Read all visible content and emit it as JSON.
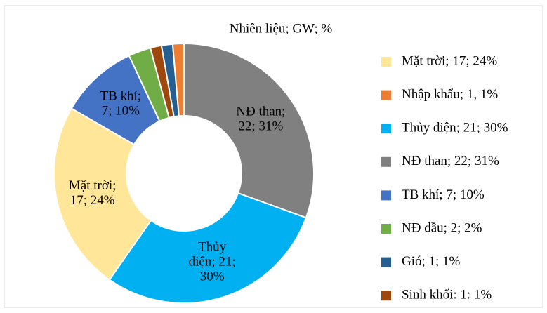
{
  "chart_data": {
    "type": "donut",
    "title": "Nhiên liệu; GW; %",
    "categories": [
      "Mặt trời",
      "Nhập khẩu",
      "Thủy điện",
      "NĐ than",
      "TB khí",
      "NĐ dầu",
      "Gió",
      "Sinh khối"
    ],
    "values": [
      17,
      1,
      21,
      22,
      7,
      2,
      1,
      1
    ],
    "percents": [
      24,
      1,
      30,
      31,
      10,
      2,
      1,
      1
    ],
    "colors": [
      "#ffe699",
      "#ed7d31",
      "#00b0f0",
      "#808080",
      "#4472c4",
      "#70ad47",
      "#255e91",
      "#9e480e"
    ],
    "legend_labels": [
      "Mặt trời; 17; 24%",
      "Nhập khẩu; 1, 1%",
      "Thủy điện; 21; 30%",
      "NĐ than; 22; 31%",
      "TB khí; 7; 10%",
      "NĐ dầu; 2; 2%",
      "Gió; 1; 1%",
      "Sinh khối: 1: 1%"
    ],
    "value_labels": [
      [
        "Mặt trời;",
        "17; 24%"
      ],
      null,
      [
        "Thủy",
        "điện; 21;",
        "30%"
      ],
      [
        "NĐ than;",
        "22; 31%"
      ],
      [
        "TB khí;",
        "7; 10%"
      ],
      null,
      null,
      null
    ]
  }
}
